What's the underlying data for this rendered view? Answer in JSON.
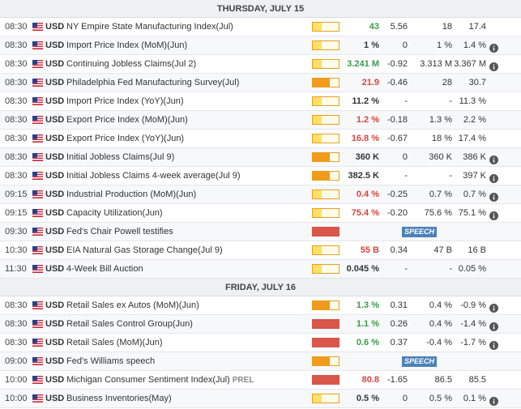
{
  "days": [
    {
      "label": "THURSDAY, JULY 15",
      "events": [
        {
          "time": "08:30",
          "currency": "USD",
          "event": "NY Empire State Manufacturing Index(Jul)",
          "volatility": "low",
          "actual": "43",
          "actual_tone": "pos",
          "deviation": "5.56",
          "consensus": "18",
          "previous": "17.4",
          "info": false
        },
        {
          "time": "08:30",
          "currency": "USD",
          "event": "Import Price Index (MoM)(Jun)",
          "volatility": "low",
          "actual": "1 %",
          "actual_tone": "neu",
          "deviation": "0",
          "consensus": "1 %",
          "previous": "1.4 %",
          "info": true
        },
        {
          "time": "08:30",
          "currency": "USD",
          "event": "Continuing Jobless Claims(Jul 2)",
          "volatility": "low",
          "actual": "3.241 M",
          "actual_tone": "pos",
          "deviation": "-0.92",
          "consensus": "3.313 M",
          "previous": "3.367 M",
          "info": true
        },
        {
          "time": "08:30",
          "currency": "USD",
          "event": "Philadelphia Fed Manufacturing Survey(Jul)",
          "volatility": "med",
          "actual": "21.9",
          "actual_tone": "neg",
          "deviation": "-0.46",
          "consensus": "28",
          "previous": "30.7",
          "info": false
        },
        {
          "time": "08:30",
          "currency": "USD",
          "event": "Import Price Index (YoY)(Jun)",
          "volatility": "low",
          "actual": "11.2 %",
          "actual_tone": "neu",
          "deviation": "-",
          "consensus": "-",
          "previous": "11.3 %",
          "info": false
        },
        {
          "time": "08:30",
          "currency": "USD",
          "event": "Export Price Index (MoM)(Jun)",
          "volatility": "low",
          "actual": "1.2 %",
          "actual_tone": "neg",
          "deviation": "-0.18",
          "consensus": "1.3 %",
          "previous": "2.2 %",
          "info": false
        },
        {
          "time": "08:30",
          "currency": "USD",
          "event": "Export Price Index (YoY)(Jun)",
          "volatility": "low",
          "actual": "16.8 %",
          "actual_tone": "neg",
          "deviation": "-0.67",
          "consensus": "18 %",
          "previous": "17.4 %",
          "info": false
        },
        {
          "time": "08:30",
          "currency": "USD",
          "event": "Initial Jobless Claims(Jul 9)",
          "volatility": "med",
          "actual": "360 K",
          "actual_tone": "neu",
          "deviation": "0",
          "consensus": "360 K",
          "previous": "386 K",
          "info": true
        },
        {
          "time": "08:30",
          "currency": "USD",
          "event": "Initial Jobless Claims 4-week average(Jul 9)",
          "volatility": "med",
          "actual": "382.5 K",
          "actual_tone": "neu",
          "deviation": "-",
          "consensus": "-",
          "previous": "397 K",
          "info": true
        },
        {
          "time": "09:15",
          "currency": "USD",
          "event": "Industrial Production (MoM)(Jun)",
          "volatility": "low",
          "actual": "0.4 %",
          "actual_tone": "neg",
          "deviation": "-0.25",
          "consensus": "0.7 %",
          "previous": "0.7 %",
          "info": true
        },
        {
          "time": "09:15",
          "currency": "USD",
          "event": "Capacity Utilization(Jun)",
          "volatility": "low",
          "actual": "75.4 %",
          "actual_tone": "neg",
          "deviation": "-0.20",
          "consensus": "75.6 %",
          "previous": "75.1 %",
          "info": true
        },
        {
          "time": "09:30",
          "currency": "USD",
          "event": "Fed's Chair Powell testifies",
          "volatility": "high",
          "speech": "SPEECH"
        },
        {
          "time": "10:30",
          "currency": "USD",
          "event": "EIA Natural Gas Storage Change(Jul 9)",
          "volatility": "low",
          "actual": "55 B",
          "actual_tone": "neg",
          "deviation": "0.34",
          "consensus": "47 B",
          "previous": "16 B",
          "info": false
        },
        {
          "time": "11:30",
          "currency": "USD",
          "event": "4-Week Bill Auction",
          "volatility": "low",
          "actual": "0.045 %",
          "actual_tone": "neu",
          "deviation": "-",
          "consensus": "-",
          "previous": "0.05 %",
          "info": false
        }
      ]
    },
    {
      "label": "FRIDAY, JULY 16",
      "events": [
        {
          "time": "08:30",
          "currency": "USD",
          "event": "Retail Sales ex Autos (MoM)(Jun)",
          "volatility": "med",
          "actual": "1.3 %",
          "actual_tone": "pos",
          "deviation": "0.31",
          "consensus": "0.4 %",
          "previous": "-0.9 %",
          "info": true
        },
        {
          "time": "08:30",
          "currency": "USD",
          "event": "Retail Sales Control Group(Jun)",
          "volatility": "high",
          "actual": "1.1 %",
          "actual_tone": "pos",
          "deviation": "0.26",
          "consensus": "0.4 %",
          "previous": "-1.4 %",
          "info": true
        },
        {
          "time": "08:30",
          "currency": "USD",
          "event": "Retail Sales (MoM)(Jun)",
          "volatility": "high",
          "actual": "0.6 %",
          "actual_tone": "pos",
          "deviation": "0.37",
          "consensus": "-0.4 %",
          "previous": "-1.7 %",
          "info": true
        },
        {
          "time": "09:00",
          "currency": "USD",
          "event": "Fed's Williams speech",
          "volatility": "med",
          "speech": "SPEECH"
        },
        {
          "time": "10:00",
          "currency": "USD",
          "event": "Michigan Consumer Sentiment Index(Jul)",
          "prel": "PREL",
          "volatility": "high",
          "actual": "80.8",
          "actual_tone": "neg",
          "deviation": "-1.65",
          "consensus": "86.5",
          "previous": "85.5",
          "info": false
        },
        {
          "time": "10:00",
          "currency": "USD",
          "event": "Business Inventories(May)",
          "volatility": "low",
          "actual": "0.5 %",
          "actual_tone": "neu",
          "deviation": "0",
          "consensus": "0.5 %",
          "previous": "0.1 %",
          "info": true
        }
      ]
    }
  ],
  "volatility_fill": {
    "low": 0.33,
    "med": 0.66,
    "high": 1.0
  },
  "colors": {
    "positive": "#3a9a4a",
    "negative": "#d9443a",
    "medium": "#f29a1a",
    "high": "#d8564a",
    "speech": "#4a82b8"
  }
}
